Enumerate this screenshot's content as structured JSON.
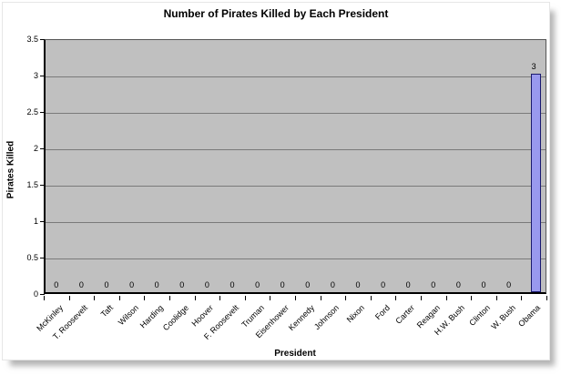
{
  "chart_data": {
    "type": "bar",
    "title": "Number of Pirates Killed by Each President",
    "xlabel": "President",
    "ylabel": "Pirates Killed",
    "categories": [
      "McKinley",
      "T. Roosevelt",
      "Taft",
      "Wilson",
      "Harding",
      "Coolidge",
      "Hoover",
      "F. Roosevelt",
      "Truman",
      "Eisenhower",
      "Kennedy",
      "Johnson",
      "Nixon",
      "Ford",
      "Carter",
      "Reagan",
      "H.W. Bush",
      "Clinton",
      "W. Bush",
      "Obama"
    ],
    "values": [
      0,
      0,
      0,
      0,
      0,
      0,
      0,
      0,
      0,
      0,
      0,
      0,
      0,
      0,
      0,
      0,
      0,
      0,
      0,
      3
    ],
    "data_labels_visible": true,
    "ylim": [
      0,
      3.5
    ],
    "ytick_step": 0.5,
    "grid": "horizontal",
    "legend_position": "none",
    "colors": {
      "plot_background": "#c0c0c0",
      "gridline": "#7a7a7a",
      "bar_fill": "#9999ee",
      "bar_border": "#1a1a6e",
      "axis": "#000000",
      "text": "#000000"
    }
  }
}
